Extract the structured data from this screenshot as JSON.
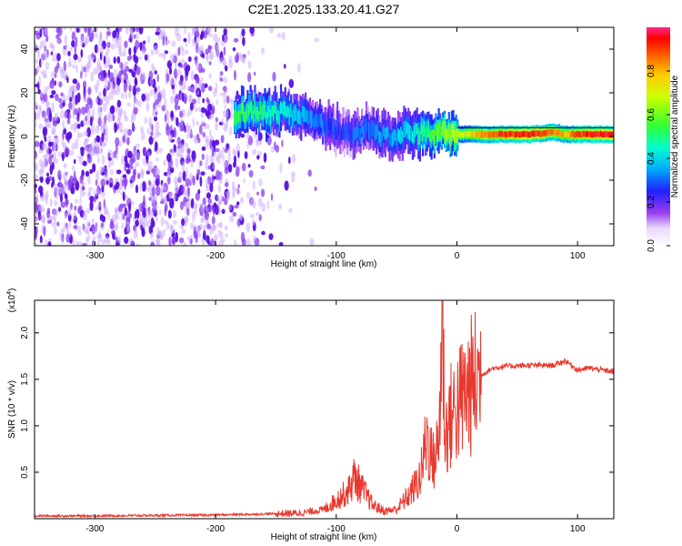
{
  "title": "C2E1.2025.133.20.41.G27",
  "colors": {
    "snr_line": "#e8382e",
    "frame": "#000000",
    "spectrogram_noise": "#6a1fe0",
    "spectrogram_peak": "#e81e1e"
  },
  "chart_data": [
    {
      "type": "heatmap",
      "name": "spectrogram",
      "xlabel": "Height of straight line (km)",
      "ylabel": "Frequency (Hz)",
      "xlim": [
        -350,
        130
      ],
      "ylim": [
        -50,
        50
      ],
      "xticks": [
        -300,
        -200,
        -100,
        0,
        100
      ],
      "yticks": [
        -40,
        -20,
        0,
        20,
        40
      ],
      "xtick_labels": [
        "-300",
        "-200",
        "-100",
        "0",
        "100"
      ],
      "ytick_labels": [
        "-40",
        "-20",
        "0",
        "20",
        "40"
      ],
      "colorbar": {
        "label": "Normalized spectral amplitude",
        "range": [
          0,
          1
        ],
        "ticks": [
          0.0,
          0.2,
          0.4,
          0.6,
          0.8
        ],
        "tick_labels": [
          "0.0",
          "0.2",
          "0.4",
          "0.6",
          "0.8"
        ]
      },
      "signal_track": {
        "x": [
          -185,
          -165,
          -150,
          -135,
          -125,
          -110,
          -95,
          -85,
          -75,
          -65,
          -55,
          -45,
          -35,
          -25,
          -15,
          -5,
          5,
          20,
          40,
          60,
          80,
          90,
          100,
          120,
          130
        ],
        "y": [
          11,
          11,
          11,
          10,
          9,
          5,
          3,
          2,
          3,
          1,
          0,
          2,
          2,
          1,
          2,
          1,
          1,
          1,
          1,
          1,
          2,
          1,
          1,
          1,
          1
        ],
        "amplitude": [
          0.55,
          0.5,
          0.45,
          0.4,
          0.35,
          0.3,
          0.25,
          0.3,
          0.3,
          0.35,
          0.35,
          0.4,
          0.45,
          0.5,
          0.6,
          0.65,
          0.7,
          0.85,
          0.9,
          0.95,
          0.85,
          0.8,
          0.9,
          0.95,
          0.95
        ]
      },
      "noise_region": {
        "x_range": [
          -350,
          -135
        ],
        "amplitude": 0.05
      }
    },
    {
      "type": "line",
      "name": "snr",
      "xlabel": "Height of straight line (km)",
      "ylabel": "SNR (10 * v/v)",
      "y_multiplier_label": "(x10",
      "y_multiplier_exp": "4",
      "y_multiplier_close": ")",
      "xlim": [
        -350,
        130
      ],
      "ylim": [
        0,
        2.35
      ],
      "xticks": [
        -300,
        -200,
        -100,
        0,
        100
      ],
      "yticks": [
        0.5,
        1.0,
        1.5,
        2.0
      ],
      "xtick_labels": [
        "-300",
        "-200",
        "-100",
        "0",
        "100"
      ],
      "ytick_labels": [
        "0.5",
        "1.0",
        "1.5",
        "2.0"
      ],
      "series": [
        {
          "x": [
            -350,
            -300,
            -250,
            -200,
            -160,
            -130,
            -110,
            -100,
            -90,
            -85,
            -80,
            -70,
            -60,
            -50,
            -40,
            -30,
            -25,
            -20,
            -15,
            -12,
            -10,
            -5,
            0,
            10,
            20,
            30,
            40,
            60,
            80,
            90,
            100,
            110,
            120,
            130
          ],
          "y": [
            0.03,
            0.03,
            0.035,
            0.04,
            0.05,
            0.06,
            0.1,
            0.2,
            0.3,
            0.45,
            0.35,
            0.15,
            0.08,
            0.1,
            0.25,
            0.45,
            0.9,
            0.6,
            0.8,
            2.3,
            0.9,
            1.1,
            1.2,
            1.4,
            1.55,
            1.62,
            1.64,
            1.65,
            1.65,
            1.7,
            1.6,
            1.62,
            1.6,
            1.58
          ]
        }
      ]
    }
  ]
}
